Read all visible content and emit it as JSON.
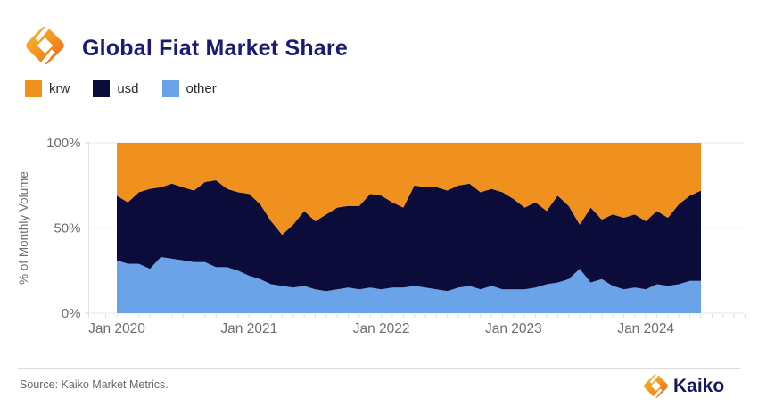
{
  "header": {
    "title": "Global Fiat Market Share",
    "logo_icon": "kaiko-mark"
  },
  "legend": [
    {
      "label": "krw",
      "color": "#F0901E"
    },
    {
      "label": "usd",
      "color": "#0C0C3A"
    },
    {
      "label": "other",
      "color": "#6BA3E8"
    }
  ],
  "colors": {
    "title_navy": "#1b1b73",
    "axis_text_gray": "#6e6e6e",
    "gridline_gray": "#ececec",
    "brand_navy": "#16165e"
  },
  "chart_data": {
    "type": "area",
    "stacked": true,
    "title": "Global Fiat Market Share",
    "ylabel": "% of Monthly Volume",
    "xlabel": "",
    "ylim": [
      0,
      100
    ],
    "unit": "%",
    "grid": "horizontal",
    "legend_position": "top-left",
    "x_start": "Jan 2020",
    "x_frequency": "monthly",
    "x_end": "Jun 2024",
    "yticks": [
      {
        "label": "0%",
        "value": 0
      },
      {
        "label": "50%",
        "value": 50
      },
      {
        "label": "100%",
        "value": 100
      }
    ],
    "xticks": [
      {
        "label": "Jan 2020",
        "index": 0
      },
      {
        "label": "Jan 2021",
        "index": 12
      },
      {
        "label": "Jan 2022",
        "index": 24
      },
      {
        "label": "Jan 2023",
        "index": 36
      },
      {
        "label": "Jan 2024",
        "index": 48
      }
    ],
    "series": [
      {
        "name": "other",
        "color": "#6BA3E8",
        "values": [
          31,
          29,
          29,
          26,
          33,
          32,
          31,
          30,
          30,
          27,
          27,
          25,
          22,
          20,
          17,
          16,
          15,
          16,
          14,
          13,
          14,
          15,
          14,
          15,
          14,
          15,
          15,
          16,
          15,
          14,
          13,
          15,
          16,
          14,
          16,
          14,
          14,
          14,
          15,
          17,
          18,
          20,
          26,
          18,
          20,
          16,
          14,
          15,
          14,
          17,
          16,
          17,
          19,
          19
        ]
      },
      {
        "name": "usd",
        "color": "#0C0C3A",
        "values": [
          38,
          36,
          42,
          47,
          41,
          44,
          43,
          42,
          47,
          51,
          46,
          46,
          48,
          44,
          37,
          30,
          37,
          44,
          40,
          45,
          48,
          48,
          49,
          55,
          55,
          50,
          47,
          59,
          59,
          60,
          59,
          60,
          60,
          57,
          57,
          57,
          53,
          48,
          50,
          43,
          51,
          43,
          26,
          44,
          35,
          42,
          42,
          43,
          40,
          43,
          40,
          47,
          50,
          53
        ]
      },
      {
        "name": "krw",
        "color": "#F0901E",
        "values": [
          31,
          35,
          29,
          27,
          26,
          24,
          26,
          28,
          23,
          22,
          27,
          29,
          30,
          36,
          46,
          54,
          48,
          40,
          46,
          42,
          38,
          37,
          37,
          30,
          31,
          35,
          38,
          25,
          26,
          26,
          28,
          25,
          24,
          29,
          27,
          29,
          33,
          38,
          35,
          40,
          31,
          37,
          48,
          38,
          45,
          42,
          44,
          42,
          46,
          40,
          44,
          36,
          31,
          28
        ]
      }
    ]
  },
  "footer": {
    "source": "Source: Kaiko Market Metrics.",
    "brand": "Kaiko",
    "brand_icon": "kaiko-mark"
  }
}
